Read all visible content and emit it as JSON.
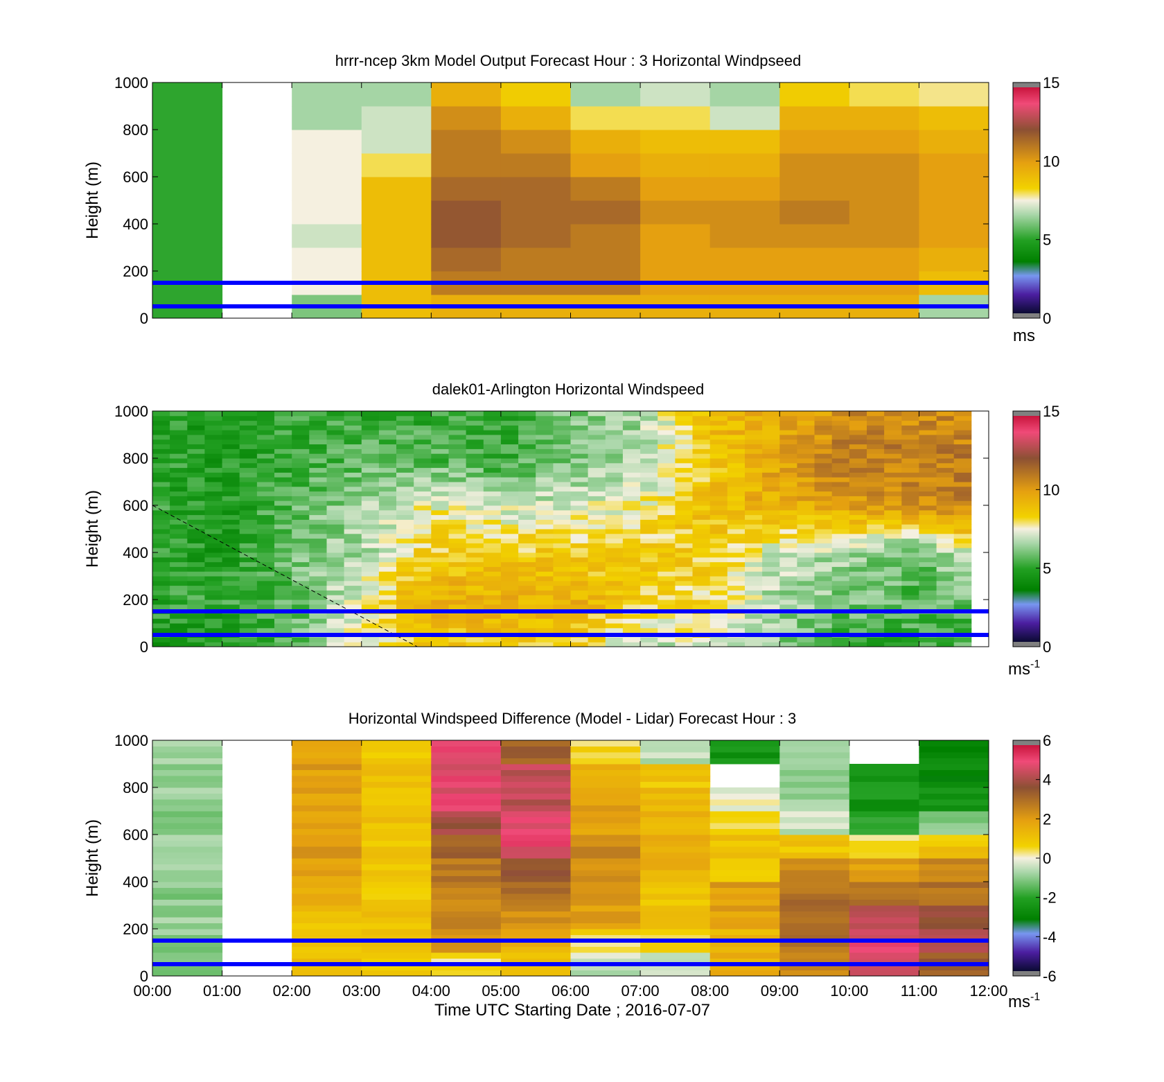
{
  "figure": {
    "xlabel": "Time UTC  Starting Date ; 2016-07-07",
    "x_ticks": [
      "00:00",
      "01:00",
      "02:00",
      "03:00",
      "04:00",
      "05:00",
      "06:00",
      "07:00",
      "08:00",
      "09:00",
      "10:00",
      "11:00",
      "12:00"
    ]
  },
  "chart_data": [
    {
      "type": "heatmap",
      "title": "hrrr-ncep 3km Model Output   Forecast Hour : 3 Horizontal Windpseed",
      "ylabel": "Height (m)",
      "ylim": [
        0,
        1000
      ],
      "y_ticks": [
        "0",
        "200",
        "400",
        "600",
        "800",
        "1000"
      ],
      "xlim": [
        0,
        12
      ],
      "colorbar": {
        "range": [
          0,
          15
        ],
        "ticks": [
          "0",
          "5",
          "10",
          "15"
        ],
        "unit": "ms"
      },
      "reference_heights": [
        50,
        150
      ],
      "hours": [
        0,
        1,
        2,
        3,
        4,
        5,
        6,
        7,
        8,
        9,
        10,
        11
      ],
      "heights": [
        50,
        150,
        250,
        350,
        450,
        550,
        650,
        750,
        850,
        950
      ],
      "values": [
        [
          5.0,
          null,
          6.0,
          9.0,
          9.5,
          9.5,
          9.5,
          9.5,
          9.5,
          9.5,
          9.5,
          6.5
        ],
        [
          5.0,
          null,
          7.5,
          9.0,
          11.0,
          11.0,
          11.0,
          10.0,
          10.0,
          10.0,
          10.0,
          9.0
        ],
        [
          5.0,
          null,
          7.5,
          9.0,
          11.5,
          11.0,
          11.0,
          10.0,
          10.0,
          10.0,
          10.0,
          9.5
        ],
        [
          5.0,
          null,
          7.0,
          9.0,
          12.0,
          11.5,
          11.0,
          10.0,
          10.5,
          10.5,
          10.5,
          10.0
        ],
        [
          5.0,
          null,
          7.5,
          9.0,
          12.0,
          11.5,
          11.5,
          10.5,
          10.5,
          11.0,
          10.5,
          10.0
        ],
        [
          5.0,
          null,
          7.5,
          9.0,
          11.5,
          11.5,
          11.0,
          10.0,
          10.0,
          10.5,
          10.5,
          10.0
        ],
        [
          5.0,
          null,
          7.5,
          8.0,
          11.0,
          11.0,
          10.0,
          9.5,
          9.5,
          10.5,
          10.5,
          10.0
        ],
        [
          5.0,
          null,
          7.5,
          7.0,
          11.0,
          10.5,
          9.5,
          9.0,
          9.0,
          10.0,
          10.0,
          9.5
        ],
        [
          5.0,
          null,
          6.5,
          7.0,
          10.5,
          9.5,
          8.0,
          8.0,
          7.0,
          9.5,
          9.5,
          9.0
        ],
        [
          5.0,
          null,
          6.5,
          6.5,
          9.5,
          8.5,
          6.5,
          7.0,
          6.5,
          8.5,
          8.0,
          7.8
        ]
      ]
    },
    {
      "type": "heatmap",
      "title": "dalek01-Arlington  Horizontal Windspeed",
      "ylabel": "Height (m)",
      "ylim": [
        0,
        1000
      ],
      "y_ticks": [
        "0",
        "200",
        "400",
        "600",
        "800",
        "1000"
      ],
      "xlim": [
        0,
        12
      ],
      "colorbar": {
        "range": [
          0,
          15
        ],
        "ticks": [
          "0",
          "5",
          "10",
          "15"
        ],
        "unit": "ms",
        "unit_exp": "-1"
      },
      "reference_heights": [
        50,
        150
      ],
      "data_xmax": 11.75,
      "hours": [
        0,
        1,
        2,
        3,
        4,
        5,
        6,
        7,
        8,
        9,
        10,
        11,
        12
      ],
      "heights": [
        0,
        200,
        400,
        600,
        800,
        1000
      ],
      "values": [
        [
          4.5,
          4.5,
          5.5,
          7.5,
          8.5,
          8.5,
          8.5,
          6.5,
          7.5,
          6.0,
          5.0,
          5.0,
          5.5
        ],
        [
          5.0,
          5.0,
          5.5,
          7.5,
          9.5,
          9.5,
          9.5,
          8.5,
          8.0,
          6.5,
          6.0,
          5.5,
          6.0
        ],
        [
          5.0,
          4.5,
          6.0,
          6.5,
          8.5,
          8.5,
          8.5,
          8.5,
          8.5,
          7.0,
          6.5,
          5.5,
          8.0
        ],
        [
          5.0,
          4.5,
          5.5,
          6.5,
          7.5,
          7.0,
          7.0,
          7.5,
          9.0,
          9.5,
          10.0,
          10.5,
          11.0
        ],
        [
          5.0,
          4.5,
          5.0,
          5.5,
          5.5,
          5.0,
          6.0,
          6.5,
          8.5,
          10.0,
          11.0,
          11.0,
          11.0
        ],
        [
          5.0,
          4.5,
          5.0,
          5.0,
          5.0,
          5.0,
          6.0,
          6.5,
          9.0,
          9.5,
          10.5,
          10.5,
          10.5
        ]
      ],
      "dashed_line": {
        "x": [
          0,
          3.8
        ],
        "y": [
          600,
          0
        ]
      }
    },
    {
      "type": "heatmap",
      "title": "Horizontal Windspeed Difference (Model - Lidar) Forecast Hour : 3",
      "ylabel": "Height (m)",
      "ylim": [
        0,
        1000
      ],
      "y_ticks": [
        "0",
        "200",
        "400",
        "600",
        "800",
        "1000"
      ],
      "xlim": [
        0,
        12
      ],
      "colorbar": {
        "range": [
          -6,
          6
        ],
        "ticks": [
          "-6",
          "-4",
          "-2",
          "0",
          "2",
          "4",
          "6"
        ],
        "unit": "ms",
        "unit_exp": "-1"
      },
      "reference_heights": [
        50,
        150
      ],
      "hours": [
        0,
        1,
        2,
        3,
        4,
        5,
        6,
        7,
        8,
        9,
        10,
        11
      ],
      "heights": [
        50,
        150,
        250,
        350,
        450,
        550,
        650,
        750,
        850,
        950
      ],
      "values": [
        [
          -1.0,
          null,
          1.0,
          1.0,
          0.5,
          1.0,
          -0.5,
          -0.5,
          1.5,
          2.5,
          4.5,
          3.5
        ],
        [
          -1.0,
          null,
          1.0,
          1.0,
          2.0,
          1.5,
          0.5,
          0.5,
          1.5,
          3.0,
          5.0,
          4.0
        ],
        [
          -1.0,
          null,
          1.0,
          1.0,
          2.5,
          2.5,
          2.0,
          1.0,
          2.0,
          3.0,
          4.5,
          4.0
        ],
        [
          -1.0,
          null,
          1.5,
          1.0,
          2.5,
          3.0,
          2.0,
          1.0,
          2.0,
          3.0,
          3.0,
          3.0
        ],
        [
          -1.0,
          null,
          2.0,
          1.0,
          3.0,
          3.5,
          2.5,
          1.5,
          1.0,
          2.5,
          2.0,
          2.5
        ],
        [
          -1.0,
          null,
          2.0,
          1.0,
          3.5,
          5.0,
          2.5,
          1.5,
          1.0,
          1.0,
          0.5,
          1.0
        ],
        [
          -1.0,
          null,
          2.0,
          1.0,
          4.0,
          5.0,
          2.0,
          1.5,
          0.5,
          -0.5,
          -2.0,
          -1.0
        ],
        [
          -1.0,
          null,
          2.0,
          1.0,
          5.0,
          4.5,
          2.0,
          1.5,
          0.0,
          -1.0,
          -2.5,
          -2.5
        ],
        [
          -1.0,
          null,
          2.0,
          1.0,
          5.0,
          4.5,
          1.5,
          1.0,
          null,
          -1.0,
          -2.5,
          -3.0
        ],
        [
          -1.0,
          null,
          2.0,
          1.0,
          5.0,
          3.5,
          0.5,
          -0.5,
          -2.5,
          -1.0,
          null,
          -3.0
        ]
      ]
    }
  ]
}
